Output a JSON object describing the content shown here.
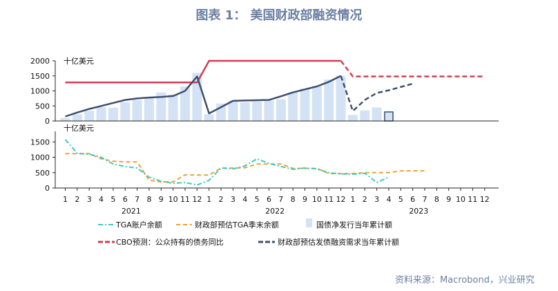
{
  "title": "图表 1：  美国财政部融资情况",
  "source": "资料来源：Macrobond，兴业研究",
  "colors": {
    "tga": "#3cc8c8",
    "treasury_tga": "#f0a030",
    "bars": "#d3e3f5",
    "cbo": "#d23c50",
    "issuance_forecast": "#3e4e6c",
    "axis": "#222222"
  },
  "chart_data": [
    {
      "type": "bar+line",
      "unit": "十亿美元",
      "ylim": [
        0,
        2000
      ],
      "yticks": [
        0,
        500,
        1000,
        1500,
        2000
      ],
      "series": [
        {
          "name": "国债净发行当年累计额",
          "kind": "bar",
          "values": [
            100,
            220,
            340,
            460,
            440,
            620,
            700,
            760,
            950,
            880,
            1150,
            1600,
            220,
            580,
            670,
            620,
            650,
            680,
            720,
            960,
            1080,
            1150,
            1380,
            1500,
            200,
            350,
            450,
            300
          ]
        },
        {
          "name": "CBO预测：公众持有的债务同比",
          "kind": "line",
          "values": [
            1280,
            1280,
            1280,
            1280,
            1280,
            1280,
            1280,
            1280,
            1280,
            1280,
            1280,
            1280,
            2000,
            2000,
            2000,
            2000,
            2000,
            2000,
            2000,
            2000,
            2000,
            2000,
            2000,
            2000,
            null,
            null,
            null,
            null,
            null,
            null,
            null,
            null,
            null,
            null,
            null,
            null
          ]
        },
        {
          "name": "CBO预测：公众持有的债务同比（预测）",
          "kind": "line-dashed",
          "values": [
            null,
            null,
            null,
            null,
            null,
            null,
            null,
            null,
            null,
            null,
            null,
            null,
            null,
            null,
            null,
            null,
            null,
            null,
            null,
            null,
            null,
            null,
            null,
            2000,
            1480,
            1480,
            1480,
            1480,
            1480,
            1480,
            1480,
            1480,
            1480,
            1480,
            1480,
            1480
          ]
        },
        {
          "name": "国债净发行当年累计额（线）",
          "kind": "line",
          "values": [
            150,
            280,
            400,
            500,
            600,
            700,
            750,
            780,
            800,
            830,
            1000,
            1480,
            250,
            460,
            670,
            680,
            690,
            700,
            820,
            950,
            1050,
            1150,
            1300,
            1500,
            null,
            null,
            null,
            null,
            null,
            null,
            null,
            null,
            null,
            null,
            null,
            null
          ]
        },
        {
          "name": "财政部预估发债融资需求当年累计额",
          "kind": "line-dashed",
          "values": [
            null,
            null,
            null,
            null,
            null,
            null,
            null,
            null,
            null,
            null,
            null,
            null,
            null,
            null,
            null,
            null,
            null,
            null,
            null,
            null,
            null,
            null,
            null,
            1500,
            330,
            700,
            930,
            1020,
            1130,
            1240,
            null,
            null,
            null,
            null,
            null,
            null
          ]
        }
      ]
    },
    {
      "type": "line",
      "unit": "十亿美元",
      "ylim": [
        0,
        1800
      ],
      "yticks": [
        0,
        500,
        1000,
        1500
      ],
      "series": [
        {
          "name": "TGA账户余额",
          "kind": "line-dashdot",
          "values": [
            1580,
            1130,
            1100,
            1000,
            780,
            700,
            650,
            350,
            220,
            150,
            180,
            100,
            250,
            650,
            620,
            720,
            950,
            800,
            700,
            610,
            650,
            620,
            500,
            460,
            450,
            480,
            180,
            350,
            null,
            null,
            null,
            null,
            null,
            null,
            null,
            null
          ]
        },
        {
          "name": "财政部预估TGA季末余额",
          "kind": "line-dashed",
          "values": [
            1120,
            1120,
            1120,
            950,
            870,
            850,
            850,
            250,
            200,
            200,
            430,
            420,
            420,
            650,
            650,
            660,
            780,
            780,
            780,
            640,
            640,
            640,
            470,
            470,
            470,
            500,
            500,
            500,
            560,
            560,
            560,
            null,
            null,
            null,
            null,
            null
          ]
        }
      ]
    }
  ],
  "x_axis": {
    "month_labels": [
      "1",
      "2",
      "3",
      "4",
      "5",
      "6",
      "7",
      "8",
      "9",
      "10",
      "11",
      "12",
      "1",
      "2",
      "3",
      "4",
      "5",
      "6",
      "7",
      "8",
      "9",
      "10",
      "11",
      "12",
      "1",
      "2",
      "3",
      "4",
      "5",
      "6",
      "7",
      "8",
      "9",
      "10",
      "11",
      "12"
    ],
    "year_labels": [
      "2021",
      "2022",
      "2023"
    ]
  },
  "legend": [
    {
      "name": "TGA账户余额",
      "style": "dashdot",
      "color_key": "tga"
    },
    {
      "name": "财政部预估TGA季末余额",
      "style": "dashed",
      "color_key": "treasury_tga"
    },
    {
      "name": "国债净发行当年累计额",
      "style": "bar",
      "color_key": "bars"
    },
    {
      "name": "CBO预测：公众持有的债务同比",
      "style": "dashed-bold",
      "color_key": "cbo"
    },
    {
      "name": "财政部预估发债融资需求当年累计额",
      "style": "dashed-bold",
      "color_key": "issuance_forecast"
    }
  ]
}
